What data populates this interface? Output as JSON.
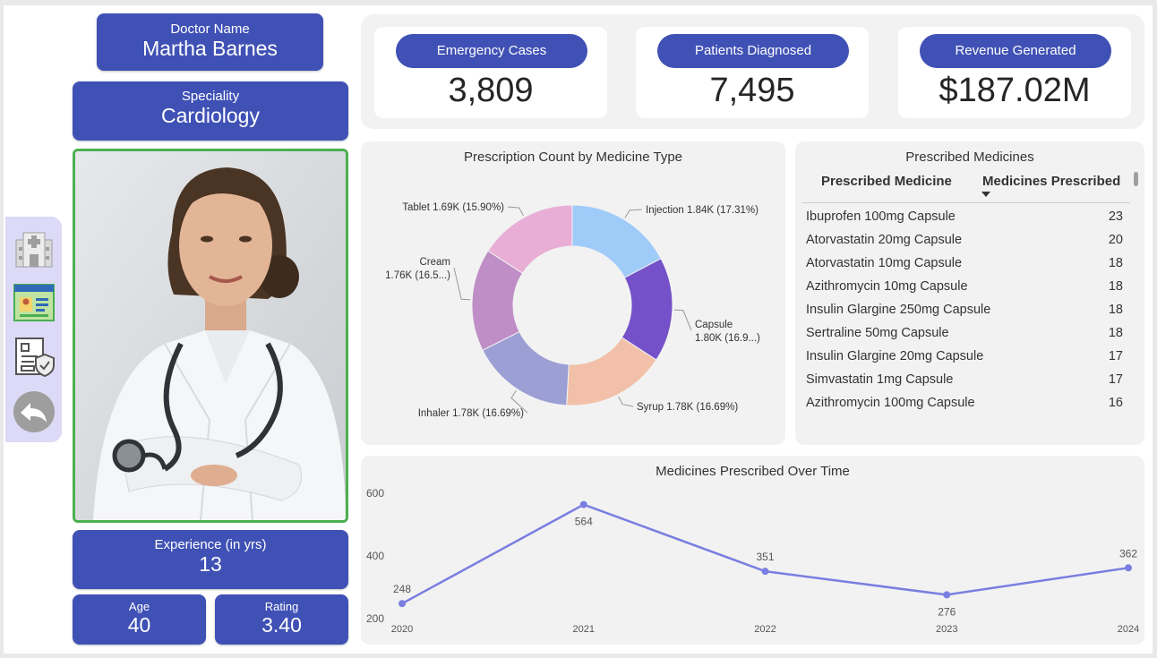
{
  "doctor": {
    "name_label": "Doctor Name",
    "name": "Martha Barnes",
    "speciality_label": "Speciality",
    "speciality": "Cardiology",
    "experience_label": "Experience (in yrs)",
    "experience": "13",
    "age_label": "Age",
    "age": "40",
    "rating_label": "Rating",
    "rating": "3.40"
  },
  "nav": {
    "items": [
      "hospital-icon",
      "profile-card-icon",
      "insurance-document-icon",
      "back-arrow-icon"
    ]
  },
  "kpis": [
    {
      "label": "Emergency Cases",
      "value": "3,809"
    },
    {
      "label": "Patients Diagnosed",
      "value": "7,495"
    },
    {
      "label": "Revenue Generated",
      "value": "$187.02M"
    }
  ],
  "donut": {
    "title": "Prescription Count by Medicine Type",
    "chart_data": {
      "type": "pie",
      "slices": [
        {
          "label": "Injection",
          "display": "Injection 1.84K (17.31%)",
          "value": 1840,
          "percent": 17.31,
          "color": "#9fcbf9"
        },
        {
          "label": "Capsule",
          "display1": "Capsule",
          "display2": "1.80K (16.9...)",
          "value": 1800,
          "percent": 16.9,
          "color": "#7451c9"
        },
        {
          "label": "Syrup",
          "display": "Syrup 1.78K (16.69%)",
          "value": 1780,
          "percent": 16.69,
          "color": "#f2c0a8"
        },
        {
          "label": "Inhaler",
          "display": "Inhaler 1.78K (16.69%)",
          "value": 1780,
          "percent": 16.69,
          "color": "#9c9fd4"
        },
        {
          "label": "Cream",
          "display1": "Cream",
          "display2": "1.76K (16.5...)",
          "value": 1760,
          "percent": 16.5,
          "color": "#bf8ec6"
        },
        {
          "label": "Tablet",
          "display": "Tablet 1.69K (15.90%)",
          "value": 1690,
          "percent": 15.9,
          "color": "#e8aed6"
        }
      ]
    }
  },
  "table": {
    "title": "Prescribed Medicines",
    "col1": "Prescribed Medicine",
    "col2": "Medicines Prescribed",
    "rows": [
      {
        "name": "Ibuprofen 100mg Capsule",
        "count": "23"
      },
      {
        "name": "Atorvastatin 20mg Capsule",
        "count": "20"
      },
      {
        "name": "Atorvastatin 10mg Capsule",
        "count": "18"
      },
      {
        "name": "Azithromycin 10mg Capsule",
        "count": "18"
      },
      {
        "name": "Insulin Glargine 250mg Capsule",
        "count": "18"
      },
      {
        "name": "Sertraline 50mg Capsule",
        "count": "18"
      },
      {
        "name": "Insulin Glargine 20mg Capsule",
        "count": "17"
      },
      {
        "name": "Simvastatin 1mg Capsule",
        "count": "17"
      },
      {
        "name": "Azithromycin 100mg Capsule",
        "count": "16"
      }
    ]
  },
  "line": {
    "title": "Medicines Prescribed Over Time",
    "chart_data": {
      "type": "line",
      "x": [
        "2020",
        "2021",
        "2022",
        "2023",
        "2024"
      ],
      "series": [
        {
          "values": [
            248,
            564,
            351,
            276,
            362
          ]
        }
      ],
      "y_ticks": [
        "600",
        "400",
        "200"
      ],
      "ylim": [
        200,
        600
      ],
      "color": "#7a7ee0"
    }
  }
}
